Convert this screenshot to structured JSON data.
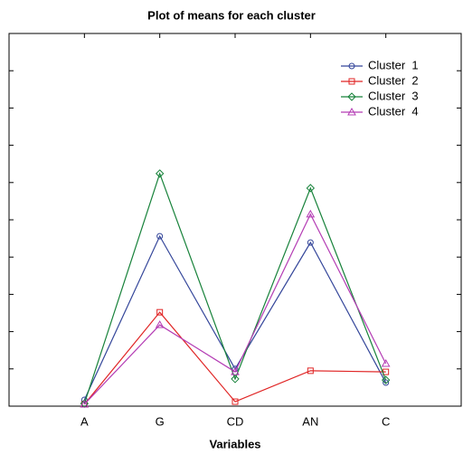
{
  "chart_data": {
    "type": "line",
    "title": "Plot of means for each cluster",
    "x_label": "Variables",
    "categories": [
      "A",
      "G",
      "CD",
      "AN",
      "C"
    ],
    "series": [
      {
        "name": "Cluster  1",
        "color": "#34469a",
        "marker": "circle",
        "values": [
          0.17,
          4.56,
          1.0,
          4.39,
          0.63
        ]
      },
      {
        "name": "Cluster  2",
        "color": "#e02424",
        "marker": "square",
        "values": [
          0.05,
          2.52,
          0.12,
          0.95,
          0.92
        ]
      },
      {
        "name": "Cluster  3",
        "color": "#17823a",
        "marker": "diamond",
        "values": [
          0.07,
          6.24,
          0.73,
          5.85,
          0.7
        ]
      },
      {
        "name": "Cluster  4",
        "color": "#b43cb4",
        "marker": "triangle",
        "values": [
          0.05,
          2.18,
          0.92,
          5.15,
          1.14
        ]
      }
    ],
    "ylim": [
      0,
      10
    ],
    "yticks": [
      0,
      1,
      2,
      3,
      4,
      5,
      6,
      7,
      8,
      9,
      10
    ],
    "legend": "top-right"
  }
}
